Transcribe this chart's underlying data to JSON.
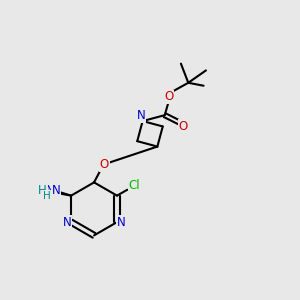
{
  "bg_color": "#e8e8e8",
  "atom_colors": {
    "N": "#0000cc",
    "O": "#cc0000",
    "Cl": "#00bb00",
    "H": "#008888"
  },
  "bond_color": "#000000",
  "bond_width": 1.5,
  "dbl_sep": 0.09
}
